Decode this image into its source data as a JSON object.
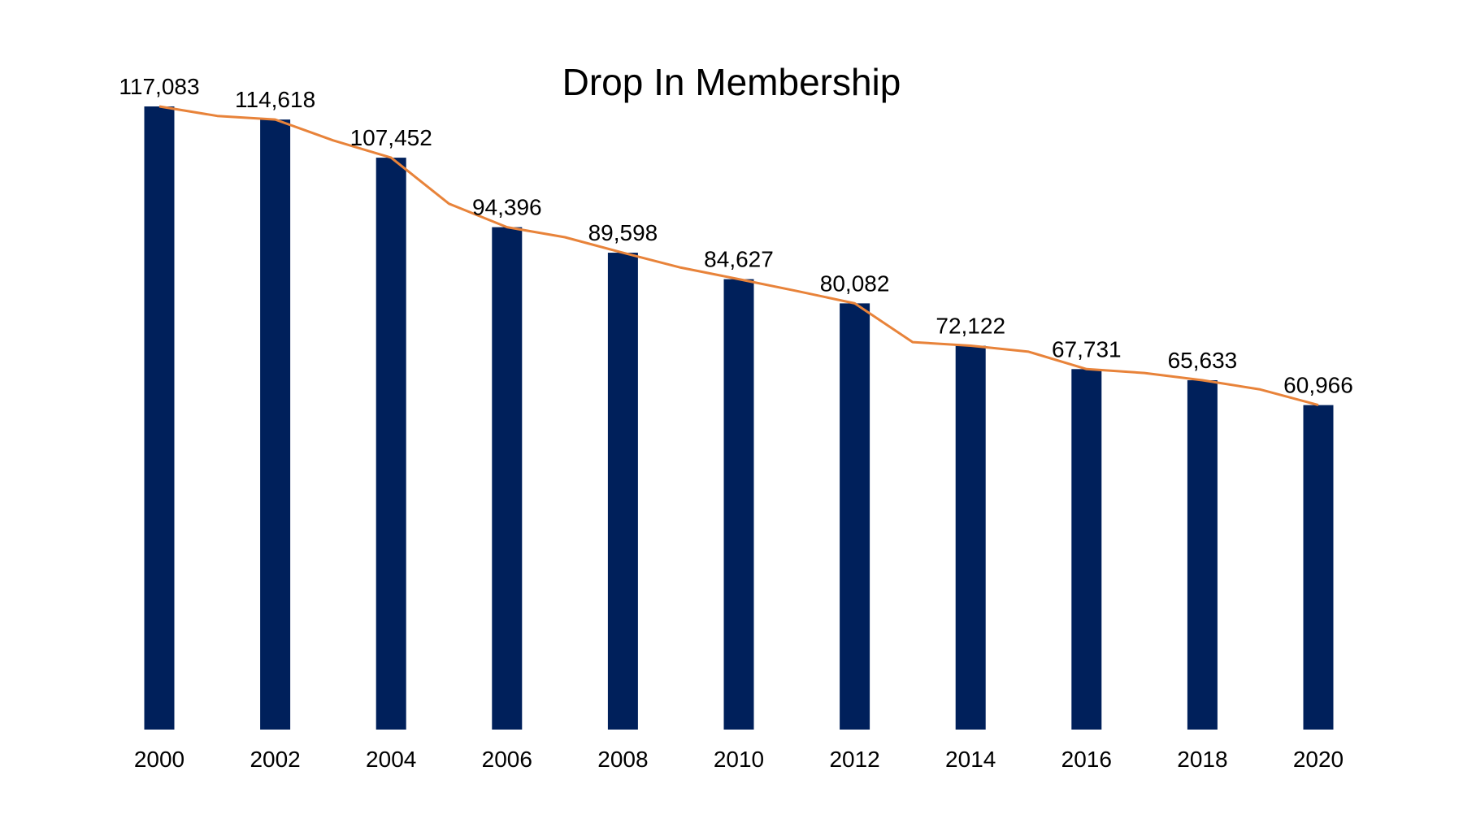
{
  "chart_data": {
    "type": "bar",
    "title": "Drop In Membership",
    "xlabel": "",
    "ylabel": "",
    "categories": [
      "2000",
      "2002",
      "2004",
      "2006",
      "2008",
      "2010",
      "2012",
      "2014",
      "2016",
      "2018",
      "2020"
    ],
    "values": [
      117083,
      114618,
      107452,
      94396,
      89598,
      84627,
      80082,
      72122,
      67731,
      65633,
      60966
    ],
    "data_labels": [
      "117,083",
      "114,618",
      "107,452",
      "94,396",
      "89,598",
      "84,627",
      "80,082",
      "72,122",
      "67,731",
      "65,633",
      "60,966"
    ],
    "trend_line": {
      "x": [
        2000,
        2001,
        2002,
        2003,
        2004,
        2005,
        2006,
        2007,
        2008,
        2009,
        2010,
        2011,
        2012,
        2013,
        2014,
        2015,
        2016,
        2017,
        2018,
        2019,
        2020
      ],
      "values": [
        117083,
        115300,
        114618,
        110700,
        107452,
        98800,
        94396,
        92500,
        89598,
        86800,
        84627,
        82400,
        80082,
        72800,
        72122,
        71000,
        67731,
        67000,
        65633,
        63900,
        60966
      ]
    },
    "ylim": [
      0,
      117083
    ],
    "grid": false,
    "legend": "none",
    "colors": {
      "bar": "#00205B",
      "line": "#E8833A"
    }
  }
}
